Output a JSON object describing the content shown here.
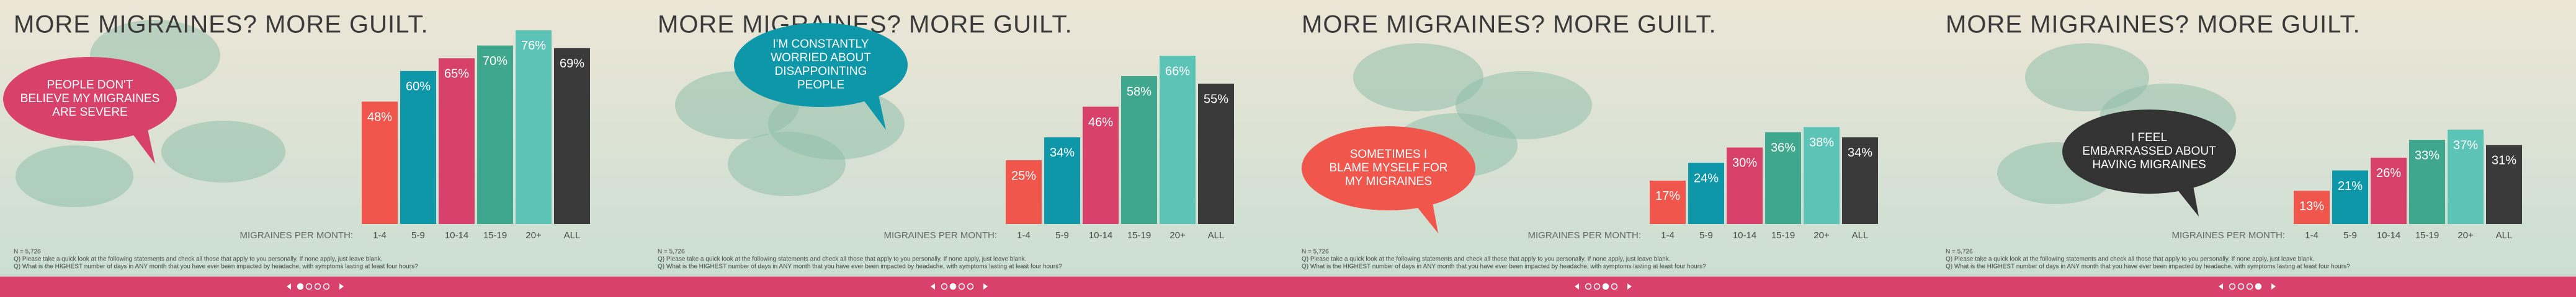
{
  "chart_data": [
    {
      "type": "bar",
      "title": "MORE MIGRAINES? MORE GUILT.",
      "x_label": "MIGRAINES PER MONTH:",
      "categories": [
        "1-4",
        "5-9",
        "10-14",
        "15-19",
        "20+",
        "ALL"
      ],
      "values": [
        48,
        60,
        65,
        70,
        76,
        69
      ],
      "value_labels": [
        "48%",
        "60%",
        "65%",
        "70%",
        "76%",
        "69%"
      ],
      "colors": [
        "#f0564b",
        "#0e97a8",
        "#d8416a",
        "#3fa78e",
        "#5cc4b6",
        "#3a3a3a"
      ],
      "bubble": [
        "PEOPLE DON'T",
        "BELIEVE MY MIGRAINES",
        "ARE SEVERE"
      ],
      "bubble_color": "#d8416a",
      "notes": [
        "N = 5,726",
        "Q) Please take a quick look at the following statements and check all those that apply to you personally. If none apply, just leave blank.",
        "Q) What is the HIGHEST number of days in ANY month that you have ever been impacted by headache, with symptoms lasting at least four hours?"
      ]
    },
    {
      "type": "bar",
      "title": "MORE MIGRAINES? MORE GUILT.",
      "x_label": "MIGRAINES PER MONTH:",
      "categories": [
        "1-4",
        "5-9",
        "10-14",
        "15-19",
        "20+",
        "ALL"
      ],
      "values": [
        25,
        34,
        46,
        58,
        66,
        55
      ],
      "value_labels": [
        "25%",
        "34%",
        "46%",
        "58%",
        "66%",
        "55%"
      ],
      "colors": [
        "#f0564b",
        "#0e97a8",
        "#d8416a",
        "#3fa78e",
        "#5cc4b6",
        "#3a3a3a"
      ],
      "bubble": [
        "I'M CONSTANTLY",
        "WORRIED ABOUT",
        "DISAPPOINTING",
        "PEOPLE"
      ],
      "bubble_color": "#0e97a8",
      "notes": [
        "N = 5,726",
        "Q) Please take a quick look at the following statements and check all those that apply to you personally. If none apply, just leave blank.",
        "Q) What is the HIGHEST number of days in ANY month that you have ever been impacted by headache, with symptoms lasting at least four hours?"
      ]
    },
    {
      "type": "bar",
      "title": "MORE MIGRAINES? MORE GUILT.",
      "x_label": "MIGRAINES PER MONTH:",
      "categories": [
        "1-4",
        "5-9",
        "10-14",
        "15-19",
        "20+",
        "ALL"
      ],
      "values": [
        17,
        24,
        30,
        36,
        38,
        34
      ],
      "value_labels": [
        "17%",
        "24%",
        "30%",
        "36%",
        "38%",
        "34%"
      ],
      "colors": [
        "#f0564b",
        "#0e97a8",
        "#d8416a",
        "#3fa78e",
        "#5cc4b6",
        "#3a3a3a"
      ],
      "bubble": [
        "SOMETIMES I",
        "BLAME MYSELF FOR",
        "MY MIGRAINES"
      ],
      "bubble_color": "#f0564b",
      "notes": [
        "N = 5,726",
        "Q) Please take a quick look at the following statements and check all those that apply to you personally. If none apply, just leave blank.",
        "Q) What is the HIGHEST number of days in ANY month that you have ever been impacted by headache, with symptoms lasting at least four hours?"
      ]
    },
    {
      "type": "bar",
      "title": "MORE MIGRAINES? MORE GUILT.",
      "x_label": "MIGRAINES PER MONTH:",
      "categories": [
        "1-4",
        "5-9",
        "10-14",
        "15-19",
        "20+",
        "ALL"
      ],
      "values": [
        13,
        21,
        26,
        33,
        37,
        31
      ],
      "value_labels": [
        "13%",
        "21%",
        "26%",
        "33%",
        "37%",
        "31%"
      ],
      "colors": [
        "#f0564b",
        "#0e97a8",
        "#d8416a",
        "#3fa78e",
        "#5cc4b6",
        "#3a3a3a"
      ],
      "bubble": [
        "I FEEL",
        "EMBARRASSED ABOUT",
        "HAVING MIGRAINES"
      ],
      "bubble_color": "#333333",
      "notes": [
        "N = 5,726",
        "Q) Please take a quick look at the following statements and check all those that apply to you personally. If none apply, just leave blank.",
        "Q) What is the HIGHEST number of days in ANY month that you have ever been impacted by headache, with symptoms lasting at least four hours?"
      ]
    }
  ]
}
